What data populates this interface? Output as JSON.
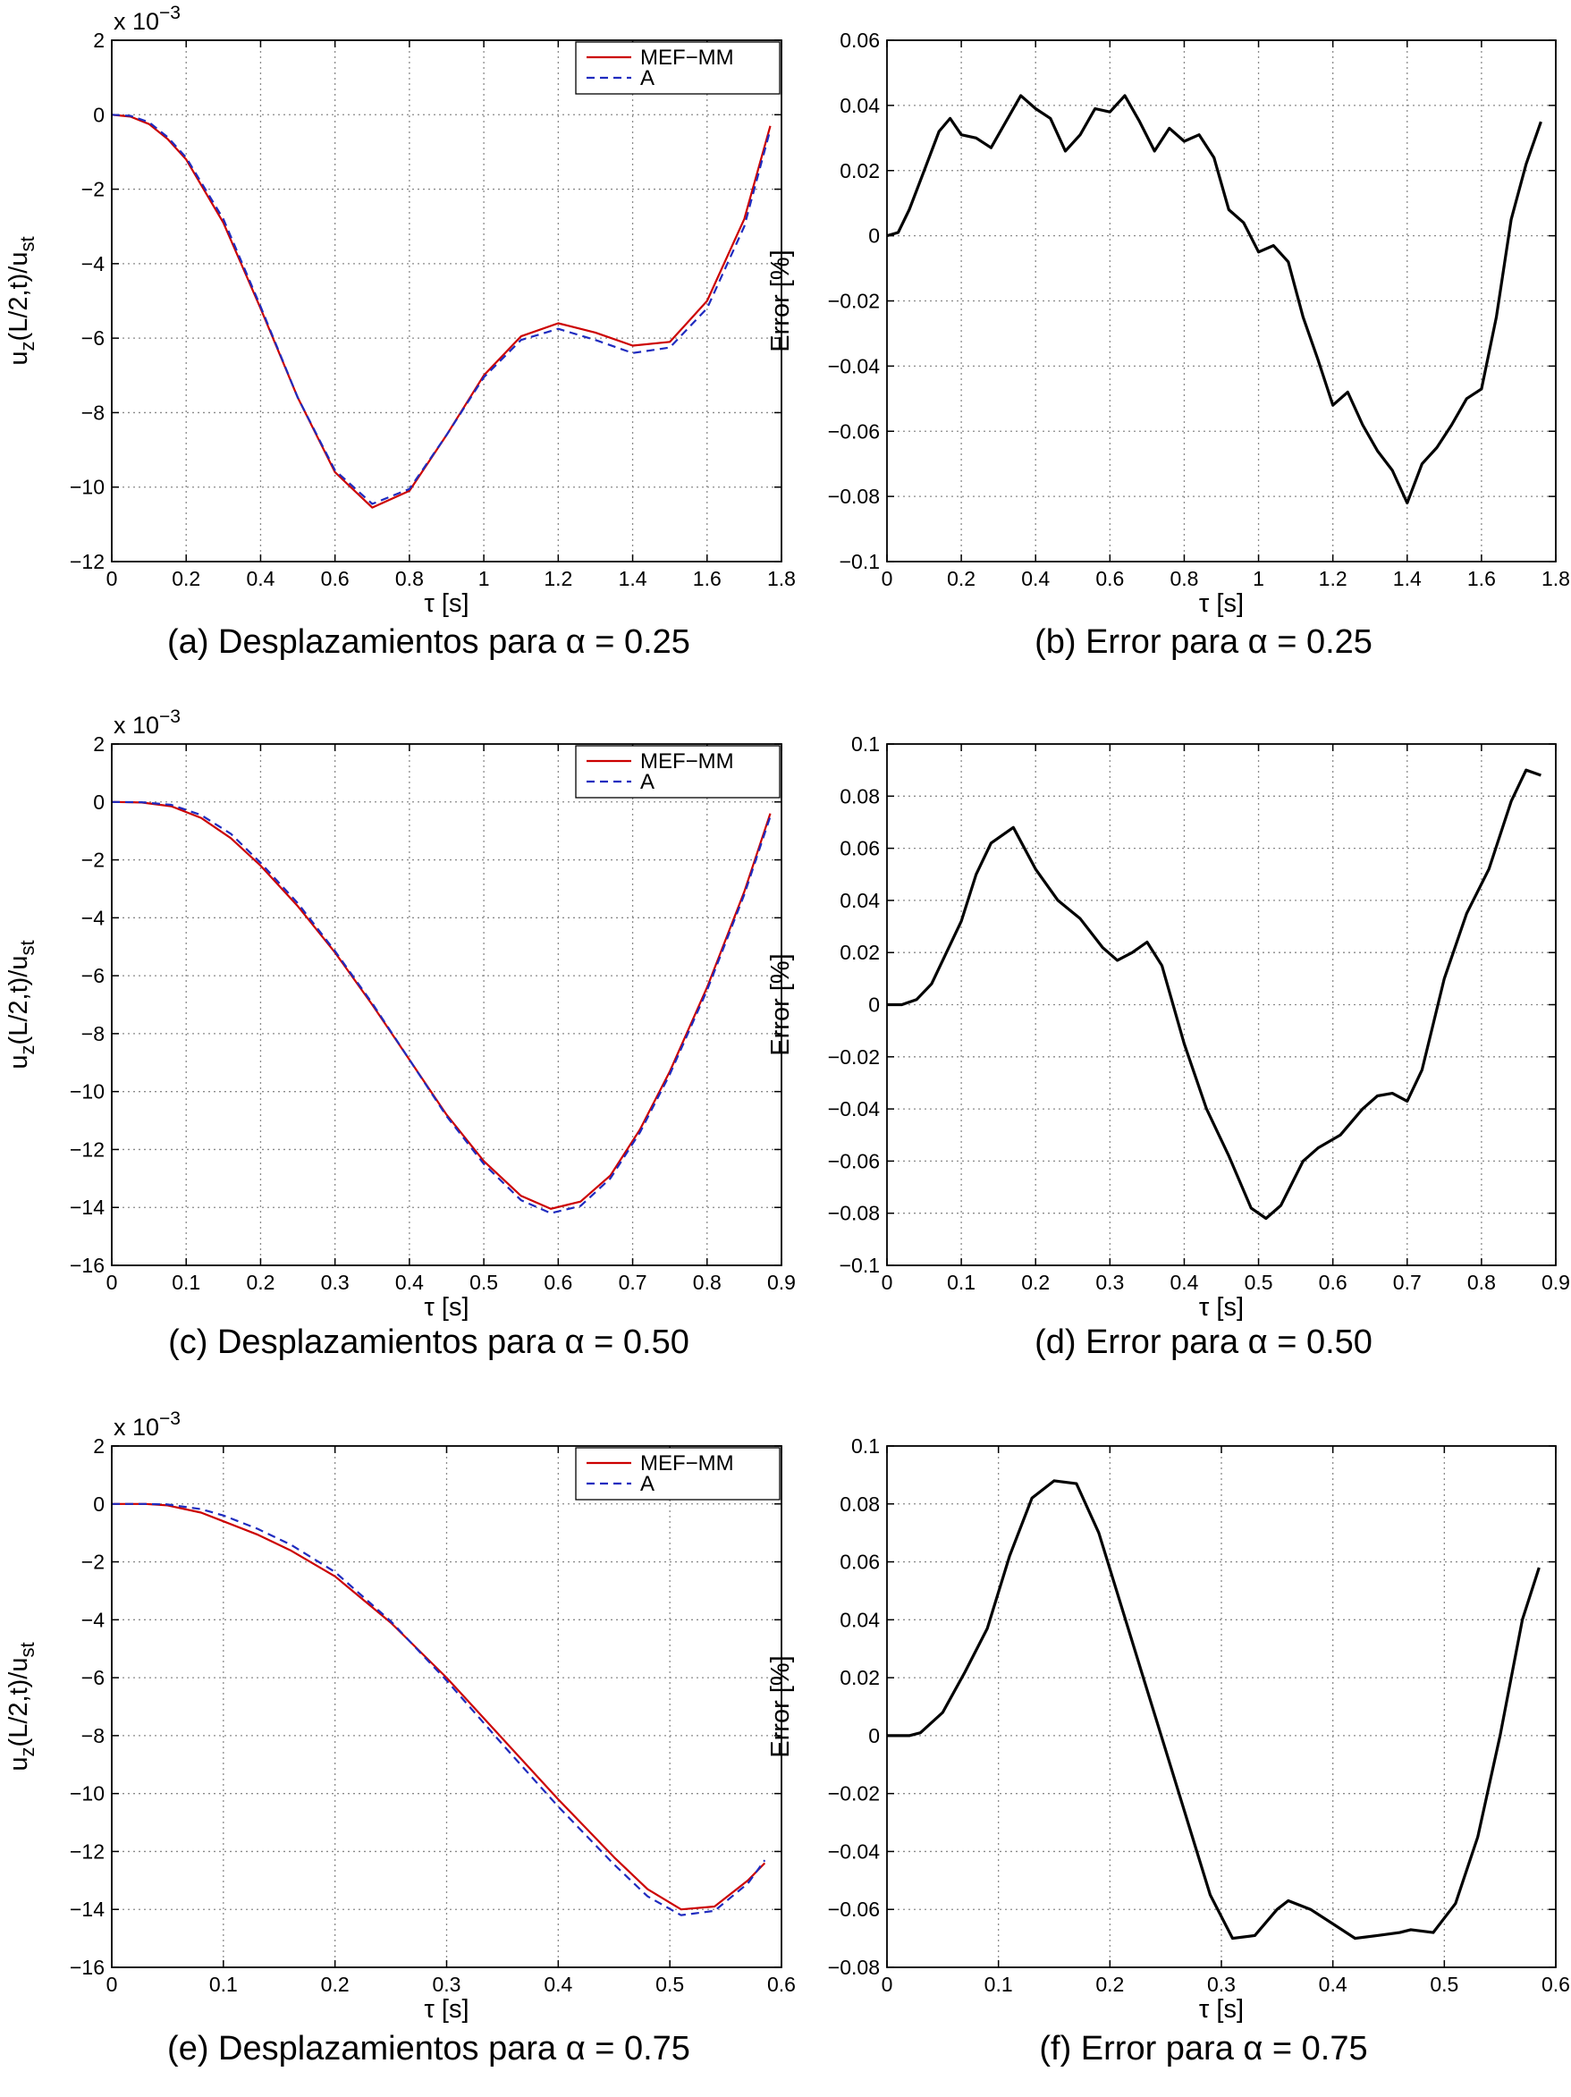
{
  "chart_data": [
    {
      "id": "a",
      "type": "line",
      "caption": "(a) Desplazamientos para α = 0.25",
      "xlabel": "τ [s]",
      "ylabel": "u_z(L/2,t)/u_st",
      "exponent_label": "x 10",
      "exponent_power": "−3",
      "xlim": [
        0,
        1.8
      ],
      "ylim": [
        -12,
        2
      ],
      "xticks": [
        0,
        0.2,
        0.4,
        0.6,
        0.8,
        1,
        1.2,
        1.4,
        1.6,
        1.8
      ],
      "xtick_labels": [
        "0",
        "0.2",
        "0.4",
        "0.6",
        "0.8",
        "1",
        "1.2",
        "1.4",
        "1.6",
        "1.8"
      ],
      "yticks": [
        -12,
        -10,
        -8,
        -6,
        -4,
        -2,
        0,
        2
      ],
      "ytick_labels": [
        "−12",
        "−10",
        "−8",
        "−6",
        "−4",
        "−2",
        "0",
        "2"
      ],
      "grid": true,
      "legend": "top-right",
      "series": [
        {
          "name": "MEF−MM",
          "color": "#cc0000",
          "dash": false,
          "x": [
            0,
            0.05,
            0.1,
            0.15,
            0.2,
            0.3,
            0.4,
            0.5,
            0.6,
            0.7,
            0.8,
            0.9,
            1.0,
            1.1,
            1.2,
            1.3,
            1.4,
            1.5,
            1.6,
            1.7,
            1.77
          ],
          "y": [
            0,
            -0.05,
            -0.25,
            -0.65,
            -1.2,
            -2.9,
            -5.2,
            -7.6,
            -9.6,
            -10.55,
            -10.1,
            -8.6,
            -7.0,
            -5.95,
            -5.6,
            -5.85,
            -6.2,
            -6.1,
            -5.0,
            -2.8,
            -0.3
          ]
        },
        {
          "name": "A",
          "color": "#1f2bbf",
          "dash": true,
          "x": [
            0,
            0.05,
            0.1,
            0.15,
            0.2,
            0.3,
            0.4,
            0.5,
            0.6,
            0.7,
            0.8,
            0.9,
            1.0,
            1.1,
            1.2,
            1.3,
            1.4,
            1.5,
            1.6,
            1.7,
            1.77
          ],
          "y": [
            0,
            -0.03,
            -0.2,
            -0.6,
            -1.15,
            -2.8,
            -5.15,
            -7.6,
            -9.55,
            -10.45,
            -10.05,
            -8.6,
            -7.05,
            -6.05,
            -5.75,
            -6.05,
            -6.4,
            -6.25,
            -5.2,
            -3.0,
            -0.4
          ]
        }
      ]
    },
    {
      "id": "b",
      "type": "line",
      "caption": "(b) Error para α = 0.25",
      "xlabel": "τ [s]",
      "ylabel": "Error [%]",
      "xlim": [
        0,
        1.8
      ],
      "ylim": [
        -0.1,
        0.06
      ],
      "xticks": [
        0,
        0.2,
        0.4,
        0.6,
        0.8,
        1,
        1.2,
        1.4,
        1.6,
        1.8
      ],
      "xtick_labels": [
        "0",
        "0.2",
        "0.4",
        "0.6",
        "0.8",
        "1",
        "1.2",
        "1.4",
        "1.6",
        "1.8"
      ],
      "yticks": [
        -0.1,
        -0.08,
        -0.06,
        -0.04,
        -0.02,
        0,
        0.02,
        0.04,
        0.06
      ],
      "ytick_labels": [
        "−0.1",
        "−0.08",
        "−0.06",
        "−0.04",
        "−0.02",
        "0",
        "0.02",
        "0.04",
        "0.06"
      ],
      "grid": true,
      "series": [
        {
          "color": "#000000",
          "dash": false,
          "x": [
            0,
            0.03,
            0.06,
            0.1,
            0.14,
            0.17,
            0.2,
            0.24,
            0.28,
            0.32,
            0.36,
            0.4,
            0.44,
            0.48,
            0.52,
            0.56,
            0.6,
            0.64,
            0.68,
            0.72,
            0.76,
            0.8,
            0.84,
            0.88,
            0.92,
            0.96,
            1.0,
            1.04,
            1.08,
            1.12,
            1.16,
            1.2,
            1.24,
            1.28,
            1.32,
            1.36,
            1.4,
            1.44,
            1.48,
            1.52,
            1.56,
            1.6,
            1.64,
            1.68,
            1.72,
            1.76
          ],
          "y": [
            0,
            0.001,
            0.008,
            0.02,
            0.032,
            0.036,
            0.031,
            0.03,
            0.027,
            0.035,
            0.043,
            0.039,
            0.036,
            0.026,
            0.031,
            0.039,
            0.038,
            0.043,
            0.035,
            0.026,
            0.033,
            0.029,
            0.031,
            0.024,
            0.008,
            0.004,
            -0.005,
            -0.003,
            -0.008,
            -0.025,
            -0.038,
            -0.052,
            -0.048,
            -0.058,
            -0.066,
            -0.072,
            -0.082,
            -0.07,
            -0.065,
            -0.058,
            -0.05,
            -0.047,
            -0.025,
            0.005,
            0.022,
            0.035
          ]
        }
      ]
    },
    {
      "id": "c",
      "type": "line",
      "caption": "(c) Desplazamientos para α = 0.50",
      "xlabel": "τ [s]",
      "ylabel": "u_z(L/2,t)/u_st",
      "exponent_label": "x 10",
      "exponent_power": "−3",
      "xlim": [
        0,
        0.9
      ],
      "ylim": [
        -16,
        2
      ],
      "xticks": [
        0,
        0.1,
        0.2,
        0.3,
        0.4,
        0.5,
        0.6,
        0.7,
        0.8,
        0.9
      ],
      "xtick_labels": [
        "0",
        "0.1",
        "0.2",
        "0.3",
        "0.4",
        "0.5",
        "0.6",
        "0.7",
        "0.8",
        "0.9"
      ],
      "yticks": [
        -16,
        -14,
        -12,
        -10,
        -8,
        -6,
        -4,
        -2,
        0,
        2
      ],
      "ytick_labels": [
        "−16",
        "−14",
        "−12",
        "−10",
        "−8",
        "−6",
        "−4",
        "−2",
        "0",
        "2"
      ],
      "grid": true,
      "legend": "top-right",
      "series": [
        {
          "name": "MEF−MM",
          "color": "#cc0000",
          "dash": false,
          "x": [
            0,
            0.04,
            0.08,
            0.12,
            0.16,
            0.2,
            0.25,
            0.3,
            0.35,
            0.4,
            0.45,
            0.5,
            0.55,
            0.59,
            0.63,
            0.67,
            0.71,
            0.75,
            0.8,
            0.85,
            0.885
          ],
          "y": [
            0,
            -0.02,
            -0.15,
            -0.55,
            -1.25,
            -2.2,
            -3.6,
            -5.2,
            -7.0,
            -8.9,
            -10.8,
            -12.4,
            -13.6,
            -14.05,
            -13.8,
            -12.9,
            -11.3,
            -9.3,
            -6.4,
            -3.1,
            -0.4
          ]
        },
        {
          "name": "A",
          "color": "#1f2bbf",
          "dash": true,
          "x": [
            0,
            0.04,
            0.08,
            0.12,
            0.16,
            0.2,
            0.25,
            0.3,
            0.35,
            0.4,
            0.45,
            0.5,
            0.55,
            0.59,
            0.63,
            0.67,
            0.71,
            0.75,
            0.8,
            0.85,
            0.885
          ],
          "y": [
            0,
            -0.01,
            -0.1,
            -0.45,
            -1.1,
            -2.1,
            -3.5,
            -5.15,
            -6.95,
            -8.9,
            -10.85,
            -12.5,
            -13.75,
            -14.2,
            -13.95,
            -13.0,
            -11.4,
            -9.4,
            -6.5,
            -3.2,
            -0.5
          ]
        }
      ]
    },
    {
      "id": "d",
      "type": "line",
      "caption": "(d) Error para α = 0.50",
      "xlabel": "τ [s]",
      "ylabel": "Error [%]",
      "xlim": [
        0,
        0.9
      ],
      "ylim": [
        -0.1,
        0.1
      ],
      "xticks": [
        0,
        0.1,
        0.2,
        0.3,
        0.4,
        0.5,
        0.6,
        0.7,
        0.8,
        0.9
      ],
      "xtick_labels": [
        "0",
        "0.1",
        "0.2",
        "0.3",
        "0.4",
        "0.5",
        "0.6",
        "0.7",
        "0.8",
        "0.9"
      ],
      "yticks": [
        -0.1,
        -0.08,
        -0.06,
        -0.04,
        -0.02,
        0,
        0.02,
        0.04,
        0.06,
        0.08,
        0.1
      ],
      "ytick_labels": [
        "−0.1",
        "−0.08",
        "−0.06",
        "−0.04",
        "−0.02",
        "0",
        "0.02",
        "0.04",
        "0.06",
        "0.08",
        "0.1"
      ],
      "grid": true,
      "series": [
        {
          "color": "#000000",
          "dash": false,
          "x": [
            0,
            0.02,
            0.04,
            0.06,
            0.08,
            0.1,
            0.12,
            0.14,
            0.17,
            0.2,
            0.23,
            0.26,
            0.29,
            0.31,
            0.33,
            0.35,
            0.37,
            0.4,
            0.43,
            0.46,
            0.49,
            0.51,
            0.53,
            0.56,
            0.58,
            0.61,
            0.64,
            0.66,
            0.68,
            0.7,
            0.72,
            0.75,
            0.78,
            0.81,
            0.84,
            0.86,
            0.88
          ],
          "y": [
            0,
            0.0,
            0.002,
            0.008,
            0.02,
            0.032,
            0.05,
            0.062,
            0.068,
            0.052,
            0.04,
            0.033,
            0.022,
            0.017,
            0.02,
            0.024,
            0.015,
            -0.015,
            -0.04,
            -0.058,
            -0.078,
            -0.082,
            -0.077,
            -0.06,
            -0.055,
            -0.05,
            -0.04,
            -0.035,
            -0.034,
            -0.037,
            -0.025,
            0.01,
            0.035,
            0.052,
            0.078,
            0.09,
            0.088
          ]
        }
      ]
    },
    {
      "id": "e",
      "type": "line",
      "caption": "(e) Desplazamientos para α = 0.75",
      "xlabel": "τ [s]",
      "ylabel": "u_z(L/2,t)/u_st",
      "exponent_label": "x 10",
      "exponent_power": "−3",
      "xlim": [
        0,
        0.6
      ],
      "ylim": [
        -16,
        2
      ],
      "xticks": [
        0,
        0.1,
        0.2,
        0.3,
        0.4,
        0.5,
        0.6
      ],
      "xtick_labels": [
        "0",
        "0.1",
        "0.2",
        "0.3",
        "0.4",
        "0.5",
        "0.6"
      ],
      "yticks": [
        -16,
        -14,
        -12,
        -10,
        -8,
        -6,
        -4,
        -2,
        0,
        2
      ],
      "ytick_labels": [
        "−16",
        "−14",
        "−12",
        "−10",
        "−8",
        "−6",
        "−4",
        "−2",
        "0",
        "2"
      ],
      "grid": true,
      "legend": "top-right",
      "series": [
        {
          "name": "MEF−MM",
          "color": "#cc0000",
          "dash": false,
          "x": [
            0,
            0.03,
            0.05,
            0.08,
            0.1,
            0.13,
            0.16,
            0.2,
            0.25,
            0.3,
            0.35,
            0.4,
            0.45,
            0.48,
            0.51,
            0.54,
            0.57,
            0.585
          ],
          "y": [
            0,
            0,
            -0.05,
            -0.3,
            -0.6,
            -1.05,
            -1.6,
            -2.5,
            -4.1,
            -6.0,
            -8.1,
            -10.2,
            -12.2,
            -13.3,
            -14.0,
            -13.9,
            -13.0,
            -12.4
          ]
        },
        {
          "name": "A",
          "color": "#1f2bbf",
          "dash": true,
          "x": [
            0,
            0.03,
            0.05,
            0.08,
            0.1,
            0.13,
            0.16,
            0.2,
            0.25,
            0.3,
            0.35,
            0.4,
            0.45,
            0.48,
            0.51,
            0.54,
            0.57,
            0.585
          ],
          "y": [
            0,
            0,
            -0.02,
            -0.18,
            -0.4,
            -0.85,
            -1.4,
            -2.35,
            -4.05,
            -6.1,
            -8.3,
            -10.45,
            -12.45,
            -13.55,
            -14.2,
            -14.05,
            -13.1,
            -12.3
          ]
        }
      ]
    },
    {
      "id": "f",
      "type": "line",
      "caption": "(f) Error para α = 0.75",
      "xlabel": "τ [s]",
      "ylabel": "Error [%]",
      "xlim": [
        0,
        0.6
      ],
      "ylim": [
        -0.08,
        0.1
      ],
      "xticks": [
        0,
        0.1,
        0.2,
        0.3,
        0.4,
        0.5,
        0.6
      ],
      "xtick_labels": [
        "0",
        "0.1",
        "0.2",
        "0.3",
        "0.4",
        "0.5",
        "0.6"
      ],
      "yticks": [
        -0.08,
        -0.06,
        -0.04,
        -0.02,
        0,
        0.02,
        0.04,
        0.06,
        0.08,
        0.1
      ],
      "ytick_labels": [
        "−0.08",
        "−0.06",
        "−0.04",
        "−0.02",
        "0",
        "0.02",
        "0.04",
        "0.06",
        "0.08",
        "0.1"
      ],
      "grid": true,
      "series": [
        {
          "color": "#000000",
          "dash": false,
          "x": [
            0,
            0.01,
            0.02,
            0.03,
            0.05,
            0.07,
            0.09,
            0.11,
            0.13,
            0.15,
            0.17,
            0.19,
            0.21,
            0.23,
            0.25,
            0.27,
            0.29,
            0.31,
            0.33,
            0.35,
            0.36,
            0.38,
            0.4,
            0.42,
            0.44,
            0.46,
            0.47,
            0.49,
            0.51,
            0.53,
            0.55,
            0.57,
            0.585
          ],
          "y": [
            0,
            0,
            0,
            0.001,
            0.008,
            0.022,
            0.037,
            0.062,
            0.082,
            0.088,
            0.087,
            0.07,
            0.045,
            0.02,
            -0.005,
            -0.03,
            -0.055,
            -0.07,
            -0.069,
            -0.06,
            -0.057,
            -0.06,
            -0.065,
            -0.07,
            -0.069,
            -0.068,
            -0.067,
            -0.068,
            -0.058,
            -0.035,
            0.0,
            0.04,
            0.058
          ]
        }
      ]
    }
  ]
}
